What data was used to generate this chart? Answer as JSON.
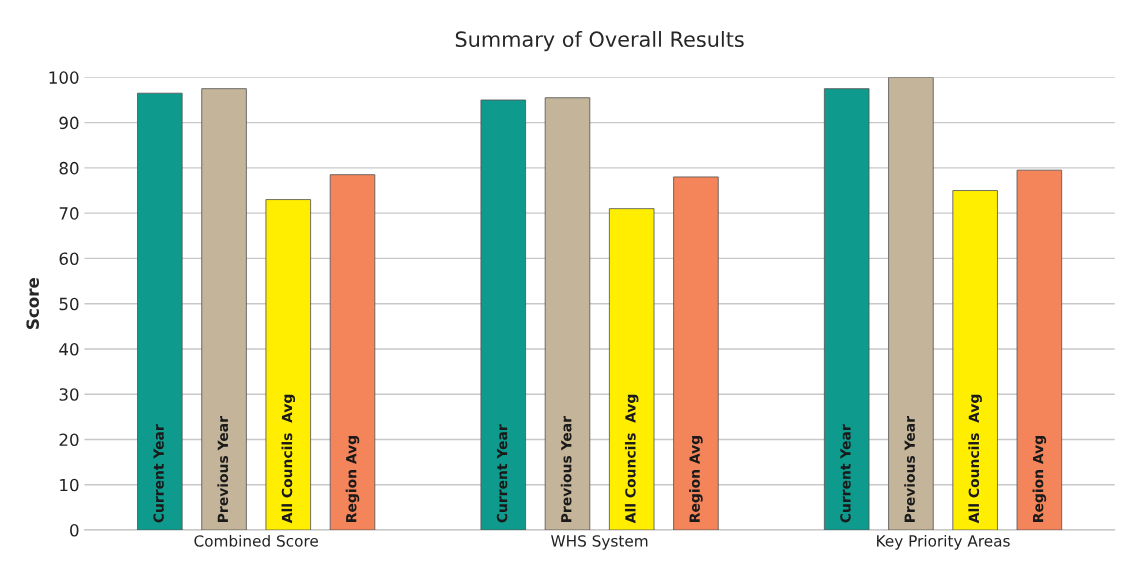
{
  "chart_data": {
    "type": "bar",
    "title": "Summary of Overall Results",
    "ylabel": "Score",
    "categories": [
      "Combined Score",
      "WHS System",
      "Key Priority Areas"
    ],
    "series": [
      {
        "name": "Current Year",
        "color": "#0e9a8c",
        "values": [
          96.5,
          95,
          97.5
        ]
      },
      {
        "name": "Previous Year",
        "color": "#c4b59a",
        "values": [
          97.5,
          95.5,
          100
        ]
      },
      {
        "name": "All Councils  Avg",
        "color": "#ffee00",
        "values": [
          73,
          71,
          75
        ]
      },
      {
        "name": "Region Avg",
        "color": "#f4845a",
        "values": [
          78.5,
          78,
          79.5
        ]
      }
    ],
    "ylim": [
      0,
      100
    ],
    "yticks": [
      0,
      10,
      20,
      30,
      40,
      50,
      60,
      70,
      80,
      90,
      100
    ],
    "grid": "y",
    "legend": false
  }
}
